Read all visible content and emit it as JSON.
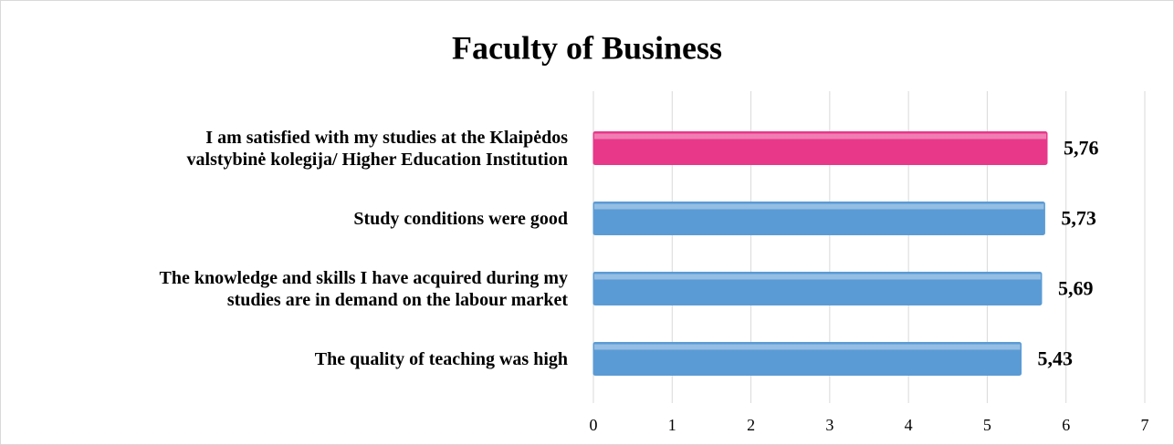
{
  "chart_data": {
    "type": "barh",
    "title": "Faculty of Business",
    "categories": [
      "I am satisfied with my studies at the Klaipėdos\nvalstybinė kolegija/ Higher Education Institution",
      "Study conditions were good",
      "The knowledge and skills I have acquired during my\nstudies are in demand on the labour market",
      "The quality of teaching was high"
    ],
    "values": [
      5.76,
      5.73,
      5.69,
      5.43
    ],
    "value_labels": [
      "5,76",
      "5,73",
      "5,69",
      "5,43"
    ],
    "colors": [
      "#e8388a",
      "#5b9bd5",
      "#5b9bd5",
      "#5b9bd5"
    ],
    "xlim": [
      0,
      7
    ],
    "xticks": [
      0,
      1,
      2,
      3,
      4,
      5,
      6,
      7
    ],
    "grid": true
  }
}
